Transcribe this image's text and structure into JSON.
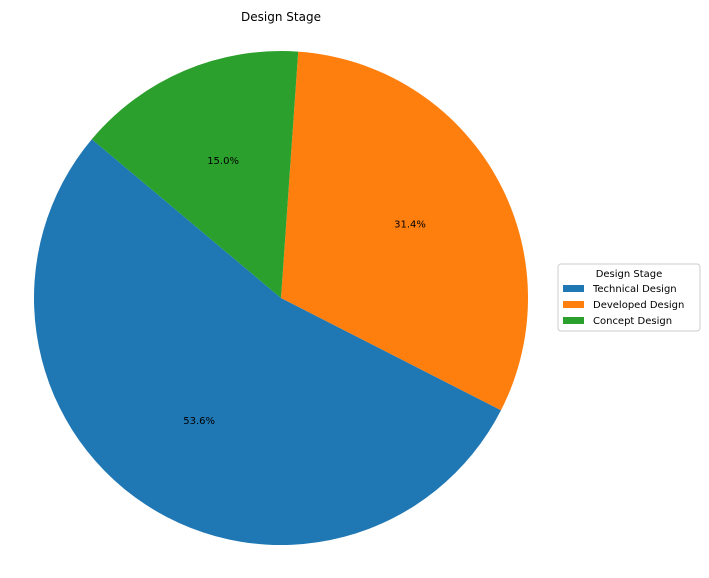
{
  "chart_data": {
    "type": "pie",
    "title": "Design Stage",
    "categories": [
      "Technical Design",
      "Developed Design",
      "Concept Design"
    ],
    "values": [
      53.6,
      31.4,
      15.0
    ],
    "labels": [
      "53.6%",
      "31.4%",
      "15.0%"
    ],
    "colors": [
      "#1f77b4",
      "#ff7f0e",
      "#2ca02c"
    ],
    "start_angle_deg": 140,
    "direction": "counterclockwise",
    "legend": {
      "title": "Design Stage",
      "placement": "center-right",
      "entries": [
        "Technical Design",
        "Developed Design",
        "Concept Design"
      ]
    }
  }
}
